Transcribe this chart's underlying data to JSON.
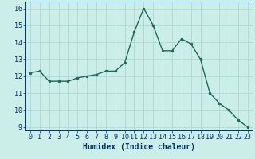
{
  "x": [
    0,
    1,
    2,
    3,
    4,
    5,
    6,
    7,
    8,
    9,
    10,
    11,
    12,
    13,
    14,
    15,
    16,
    17,
    18,
    19,
    20,
    21,
    22,
    23
  ],
  "y": [
    12.2,
    12.3,
    11.7,
    11.7,
    11.7,
    11.9,
    12.0,
    12.1,
    12.3,
    12.3,
    12.8,
    14.6,
    16.0,
    15.0,
    13.5,
    13.5,
    14.2,
    13.9,
    13.0,
    11.0,
    10.4,
    10.0,
    9.4,
    9.0
  ],
  "line_color": "#1a6b5a",
  "marker_color": "#1a6b5a",
  "bg_color": "#cceee8",
  "grid_color": "#aad4cc",
  "xlabel": "Humidex (Indice chaleur)",
  "xlabel_color": "#003366",
  "ylim": [
    8.8,
    16.4
  ],
  "xlim": [
    -0.5,
    23.5
  ],
  "yticks": [
    9,
    10,
    11,
    12,
    13,
    14,
    15,
    16
  ],
  "xticks": [
    0,
    1,
    2,
    3,
    4,
    5,
    6,
    7,
    8,
    9,
    10,
    11,
    12,
    13,
    14,
    15,
    16,
    17,
    18,
    19,
    20,
    21,
    22,
    23
  ],
  "tick_color": "#003366",
  "xlabel_fontsize": 7,
  "tick_fontsize": 6,
  "line_width": 1.0,
  "marker_size": 2.0
}
